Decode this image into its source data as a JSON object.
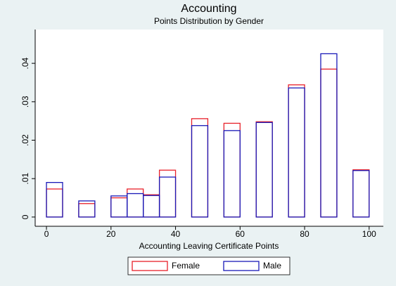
{
  "chart_data": {
    "type": "histogram",
    "title": "Accounting",
    "subtitle": "Points Distribution by Gender",
    "x_label": "Accounting Leaving Certificate Points",
    "bins": [
      0,
      5,
      10,
      15,
      20,
      25,
      30,
      35,
      40,
      45,
      50,
      55,
      60,
      65,
      70,
      75,
      80,
      85,
      90,
      95,
      100
    ],
    "series": [
      {
        "name": "Female",
        "color": "#e8212a",
        "values": [
          0.0073,
          0,
          0.0035,
          0,
          0.005,
          0.0073,
          0.0058,
          0.0122,
          0,
          0.0256,
          0,
          0.0244,
          0,
          0.0248,
          0,
          0.0344,
          0,
          0.0385,
          0,
          0.0123
        ]
      },
      {
        "name": "Male",
        "color": "#1a1ab8",
        "values": [
          0.009,
          0,
          0.0042,
          0,
          0.0055,
          0.0061,
          0.0056,
          0.0104,
          0,
          0.0238,
          0,
          0.0225,
          0,
          0.0246,
          0,
          0.0336,
          0,
          0.0425,
          0,
          0.0121
        ]
      }
    ],
    "xlim": [
      -3.5,
      104.4
    ],
    "ylim": [
      -0.0024,
      0.0488
    ],
    "xticks": [
      0,
      20,
      40,
      60,
      80,
      100
    ],
    "yticks": [
      0,
      {
        "value": 0.01,
        "label": ".01"
      },
      {
        "value": 0.02,
        "label": ".02"
      },
      {
        "value": 0.03,
        "label": ".03"
      },
      {
        "value": 0.04,
        "label": ".04"
      }
    ],
    "legend": "bottom"
  }
}
